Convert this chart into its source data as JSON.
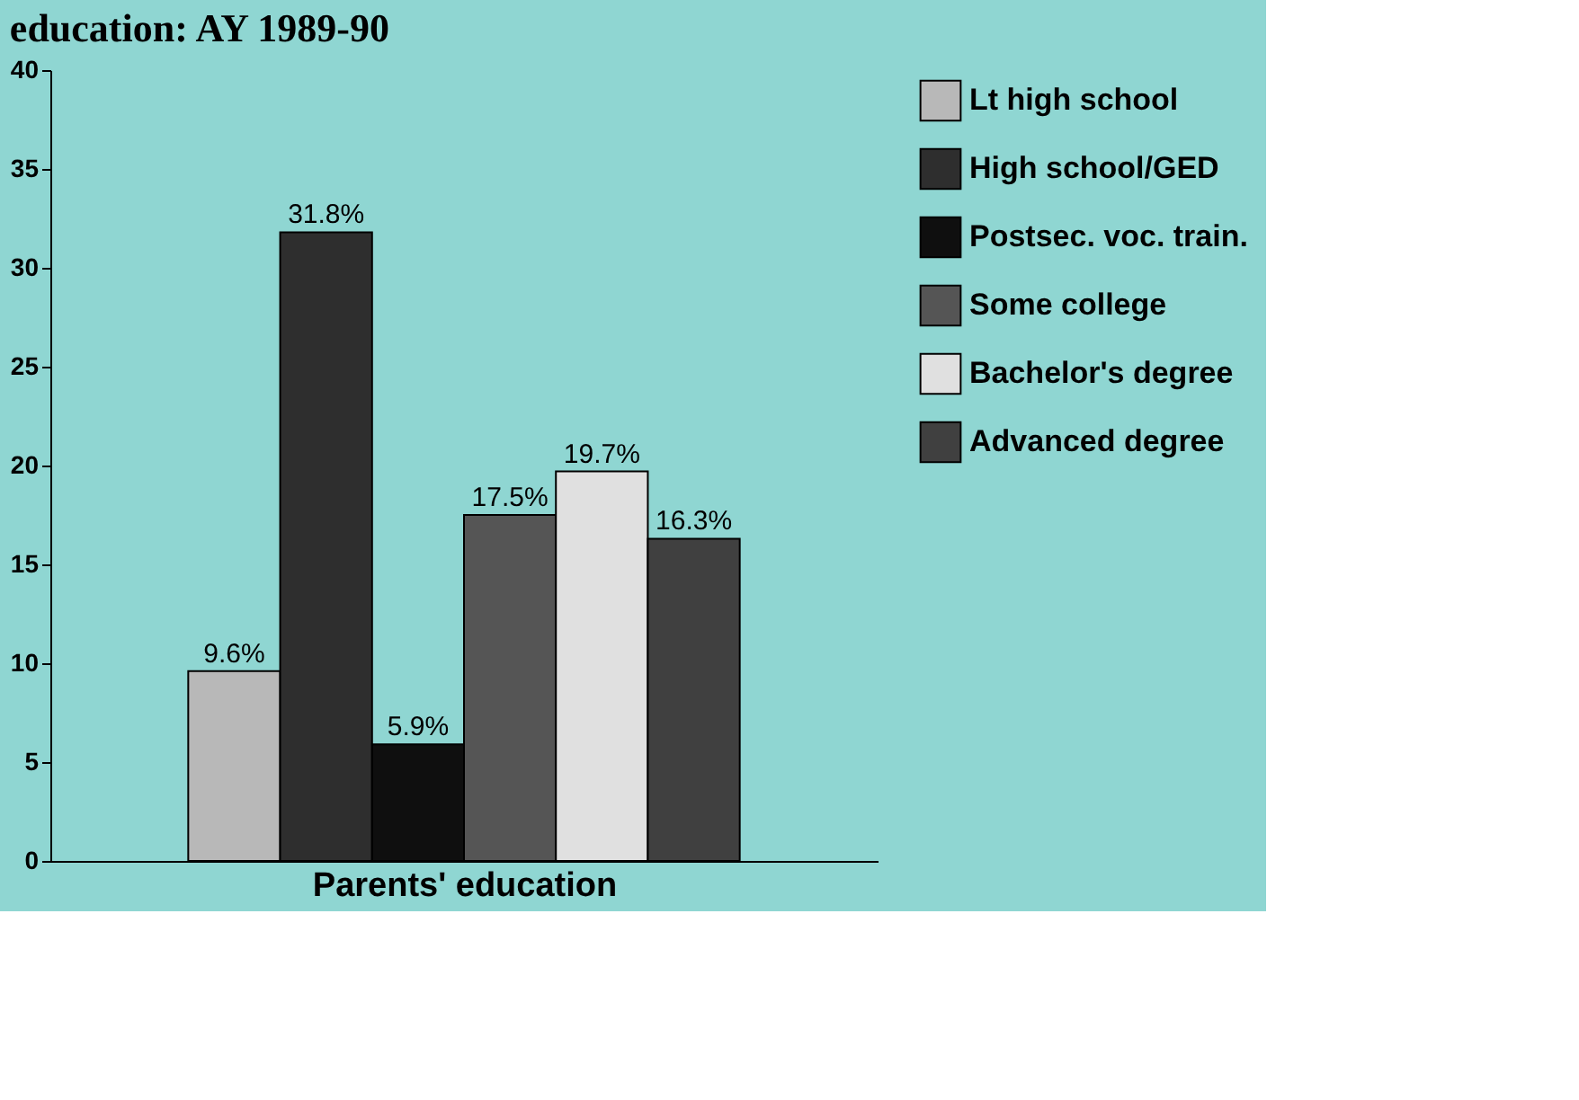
{
  "chart_data": {
    "type": "bar",
    "title": "education: AY 1989-90",
    "xlabel": "Parents' education",
    "categories": [
      null
    ],
    "series": [
      {
        "name": "Lt high school",
        "color": "#b8b8b8",
        "values": [
          9.6
        ],
        "value_labels": [
          "9.6%"
        ]
      },
      {
        "name": "High school/GED",
        "color": "#2e2e2e",
        "values": [
          31.8
        ],
        "value_labels": [
          "31.8%"
        ]
      },
      {
        "name": "Postsec. voc. train.",
        "color": "#0f0f0f",
        "values": [
          5.9
        ],
        "value_labels": [
          "5.9%"
        ]
      },
      {
        "name": "Some college",
        "color": "#555555",
        "values": [
          17.5
        ],
        "value_labels": [
          "17.5%"
        ]
      },
      {
        "name": "Bachelor's degree",
        "color": "#e0e0e0",
        "values": [
          19.7
        ],
        "value_labels": [
          "19.7%"
        ]
      },
      {
        "name": "Advanced degree",
        "color": "#404040",
        "values": [
          16.3
        ],
        "value_labels": [
          "16.3%"
        ]
      }
    ],
    "ylim": [
      0,
      40
    ],
    "yticks": [
      0,
      5,
      10,
      15,
      20,
      25,
      30,
      35,
      40
    ],
    "grid": false,
    "legend": "right",
    "tick_labels": "y"
  }
}
